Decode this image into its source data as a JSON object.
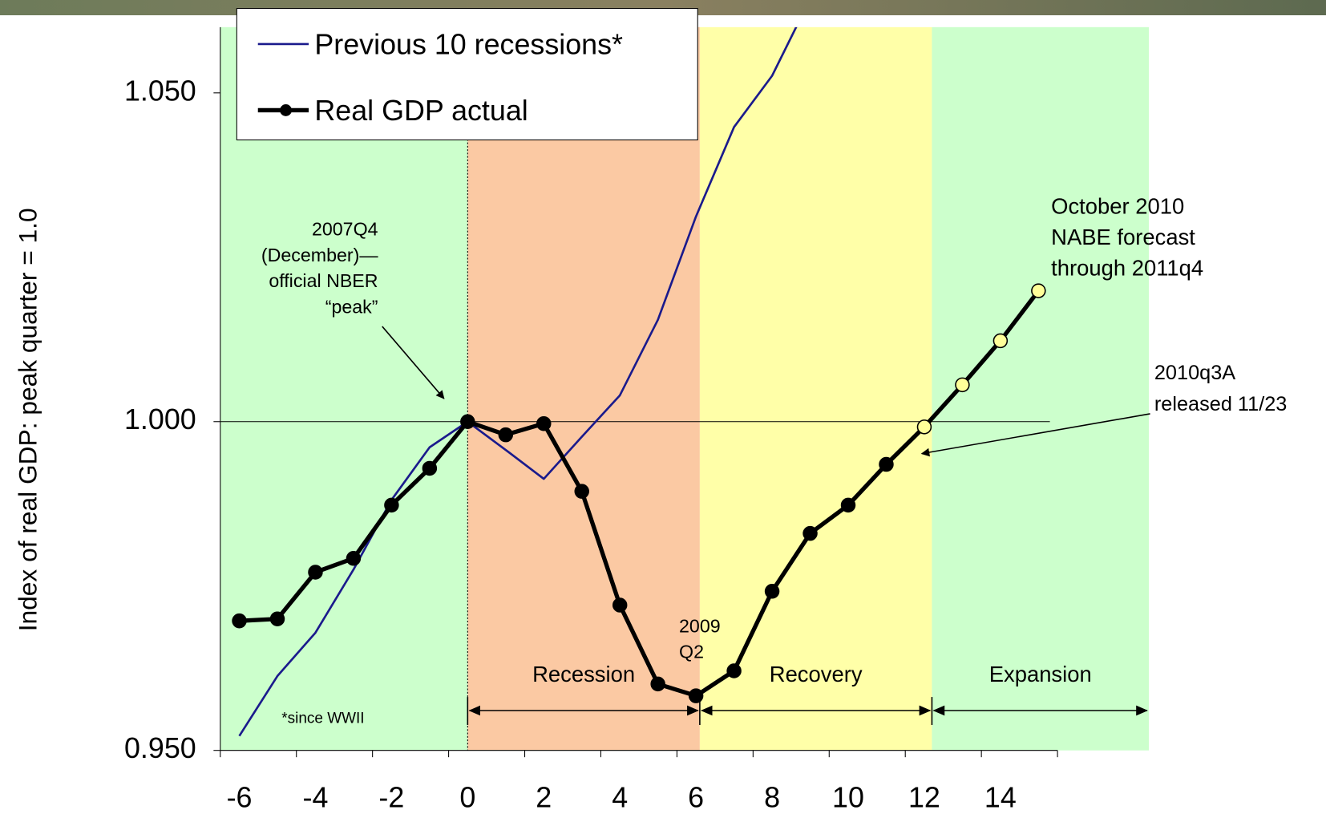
{
  "chart_data": {
    "type": "line",
    "y_label": "Index of real GDP: peak quarter = 1.0",
    "x": [
      -6,
      -5,
      -4,
      -3,
      -2,
      -1,
      0,
      1,
      2,
      3,
      4,
      5,
      6,
      7,
      8,
      9,
      10,
      11,
      12,
      13,
      14,
      15
    ],
    "series": [
      {
        "name": "Previous 10 recessions*",
        "color": "#1a1a8c",
        "values": [
          0.9522,
          0.9613,
          0.9679,
          0.9775,
          0.9881,
          0.9961,
          1.0,
          0.9957,
          0.9913,
          0.9977,
          1.004,
          1.0155,
          1.0312,
          1.0448,
          1.0526,
          1.0643,
          null,
          null,
          null,
          null,
          null,
          null
        ]
      },
      {
        "name": "Real GDP actual",
        "color": "#000000",
        "forecast_fill": "#ffff99",
        "forecast_from": 12,
        "values": [
          0.9697,
          0.97,
          0.9771,
          0.9792,
          0.9873,
          0.9929,
          1.0,
          0.998,
          0.9997,
          0.9894,
          0.9721,
          0.9601,
          0.9583,
          0.9621,
          0.9742,
          0.983,
          0.9873,
          0.9935,
          0.9992,
          1.0056,
          1.0123,
          1.0199
        ]
      }
    ],
    "xlim": [
      -6.5,
      15.5
    ],
    "xticks": [
      -6,
      -4,
      -2,
      0,
      2,
      4,
      6,
      8,
      10,
      12,
      14
    ],
    "xtick_marks": [
      -6.5,
      -4.5,
      -2.5,
      -0.5,
      1.5,
      3.5,
      5.5,
      7.5,
      9.5,
      11.5,
      13.5,
      15.5
    ],
    "ylim": [
      0.95,
      1.06
    ],
    "yticks": [
      {
        "value": 0.95,
        "label": "0.950"
      },
      {
        "value": 1.0,
        "label": "1.000"
      },
      {
        "value": 1.05,
        "label": "1.050"
      }
    ],
    "reference_line": 1.0,
    "pre_color": "#ccffcc",
    "phases": [
      {
        "label": "Recession",
        "start": 0,
        "end": 6.1,
        "color": "#fbc9a3"
      },
      {
        "label": "Recovery",
        "start": 6.1,
        "end": 12.2,
        "color": "#ffffa8"
      },
      {
        "label": "Expansion",
        "start": 12.2,
        "end": 17.9,
        "color": "#ccffcc"
      }
    ],
    "annotations": {
      "peak": [
        "2007Q4",
        "(December)—",
        "official NBER",
        "“peak”"
      ],
      "forecast": [
        "October 2010",
        "NABE forecast",
        "through 2011q4"
      ],
      "release": [
        "2010q3A",
        "released 11/23"
      ],
      "trough": [
        "2009",
        "Q2"
      ],
      "footnote": "*since WWII"
    }
  }
}
